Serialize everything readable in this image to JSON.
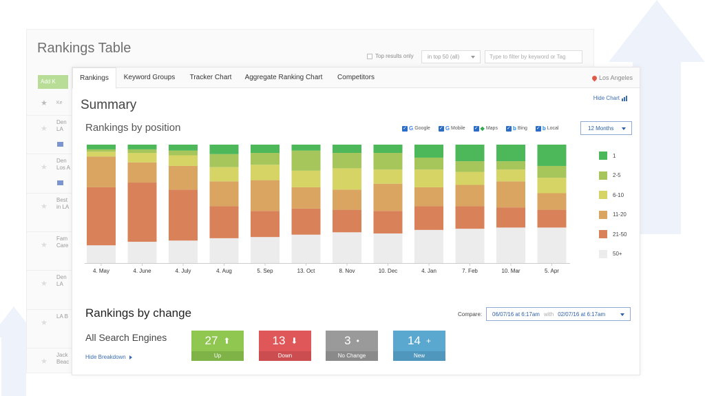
{
  "background_table": {
    "title": "Rankings Table",
    "top_results_label": "Top results only",
    "range_select": "in top 50 (all)",
    "filter_placeholder": "Type to filter by keyword or Tag",
    "add_button": "Add K",
    "keyword_header": "Ke",
    "rows": [
      {
        "line1": "Den",
        "line2": "LA"
      },
      {
        "line1": "Den",
        "line2": "Los A"
      },
      {
        "line1": "Best",
        "line2": "in LA"
      },
      {
        "line1": "Fam",
        "line2": "Care"
      },
      {
        "line1": "Den",
        "line2": "LA"
      },
      {
        "line1": "LA B",
        "line2": ""
      },
      {
        "line1": "Jack",
        "line2": "Beac"
      }
    ]
  },
  "tabs": [
    "Rankings",
    "Keyword Groups",
    "Tracker Chart",
    "Aggregate Ranking Chart",
    "Competitors"
  ],
  "location": "Los Angeles",
  "summary_title": "Summary",
  "hide_chart": "Hide Chart",
  "rankings_by_position_title": "Rankings by position",
  "engines": [
    {
      "label": "Google",
      "logo": "G",
      "color": "#4285f4"
    },
    {
      "label": "Mobile",
      "logo": "G",
      "color": "#4285f4"
    },
    {
      "label": "Maps",
      "logo": "◆",
      "color": "#34a853"
    },
    {
      "label": "Bing",
      "logo": "b",
      "color": "#1e88e5"
    },
    {
      "label": "Local",
      "logo": "b",
      "color": "#1e88e5"
    }
  ],
  "period": "12 Months",
  "chart_data": {
    "type": "bar",
    "stacked": true,
    "categories": [
      "4. May",
      "4. June",
      "4. July",
      "4. Aug",
      "5. Sep",
      "13. Oct",
      "8. Nov",
      "10. Dec",
      "4. Jan",
      "7. Feb",
      "10. Mar",
      "5. Apr"
    ],
    "series": [
      {
        "name": "50+",
        "color": "#ececec",
        "values": [
          15,
          18,
          19,
          21,
          22,
          24,
          26,
          25,
          28,
          29,
          30,
          30
        ]
      },
      {
        "name": "21-50",
        "color": "#d9825a",
        "values": [
          49,
          50,
          43,
          27,
          22,
          22,
          19,
          19,
          20,
          19,
          17,
          15
        ]
      },
      {
        "name": "11-20",
        "color": "#d9a560",
        "values": [
          26,
          17,
          20,
          21,
          26,
          18,
          17,
          23,
          16,
          18,
          22,
          14
        ]
      },
      {
        "name": "6-10",
        "color": "#d5d465",
        "values": [
          4,
          8,
          9,
          12,
          13,
          14,
          18,
          12,
          15,
          11,
          10,
          13
        ]
      },
      {
        "name": "2-5",
        "color": "#a6c65c",
        "values": [
          2,
          3,
          4,
          11,
          10,
          17,
          13,
          14,
          10,
          9,
          7,
          10
        ]
      },
      {
        "name": "1",
        "color": "#4cb85a",
        "values": [
          4,
          4,
          5,
          8,
          7,
          5,
          7,
          7,
          11,
          14,
          14,
          18
        ]
      }
    ],
    "legend_order": [
      "1",
      "2-5",
      "6-10",
      "11-20",
      "21-50",
      "50+"
    ],
    "legend_position": "right",
    "grid": false
  },
  "rankings_by_change_title": "Rankings by change",
  "compare": {
    "label": "Compare:",
    "from": "06/07/16 at 6:17am",
    "with": "with",
    "to": "02/07/16 at 6:17am"
  },
  "all_search_engines": "All Search Engines",
  "hide_breakdown": "Hide Breakdown",
  "stats": [
    {
      "value": "27",
      "symbol": "⬆",
      "label": "Up",
      "color": "#8fc750",
      "dark": "#7fb347"
    },
    {
      "value": "13",
      "symbol": "⬇",
      "label": "Down",
      "color": "#e0575a",
      "dark": "#cc4d50"
    },
    {
      "value": "3",
      "symbol": "•",
      "label": "No Change",
      "color": "#9a9a9a",
      "dark": "#8a8a8a"
    },
    {
      "value": "14",
      "symbol": "+",
      "label": "New",
      "color": "#5aa7cf",
      "dark": "#4f97bc"
    }
  ]
}
